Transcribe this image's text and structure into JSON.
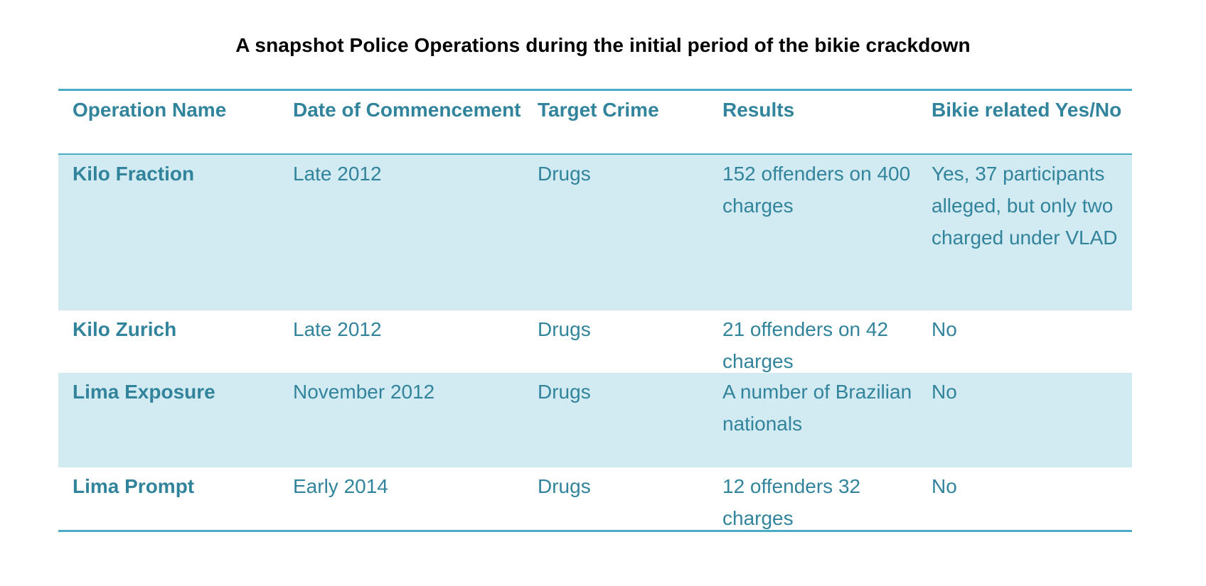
{
  "title": "A snapshot Police Operations during the initial period of the bikie crackdown",
  "table": {
    "headers": [
      "Operation Name",
      "Date of Commencement",
      "Target Crime",
      "Results",
      "Bikie related Yes/No"
    ],
    "rows": [
      {
        "operation": "Kilo Fraction",
        "date": "Late 2012",
        "crime": "Drugs",
        "results": "152 offenders on 400 charges",
        "bikie": "Yes, 37 participants alleged, but only two charged under VLAD"
      },
      {
        "operation": "Kilo Zurich",
        "date": "Late 2012",
        "crime": "Drugs",
        "results": "21 offenders on 42 charges",
        "bikie": "No"
      },
      {
        "operation": "Lima Exposure",
        "date": "November 2012",
        "crime": "Drugs",
        "results": "A number of Brazilian nationals",
        "bikie": "No"
      },
      {
        "operation": "Lima Prompt",
        "date": "Early 2014",
        "crime": "Drugs",
        "results": "12 offenders 32 charges",
        "bikie": "No"
      }
    ]
  },
  "colors": {
    "accent": "#4bacc6",
    "text": "#31849b",
    "band": "#d2eaf1"
  }
}
